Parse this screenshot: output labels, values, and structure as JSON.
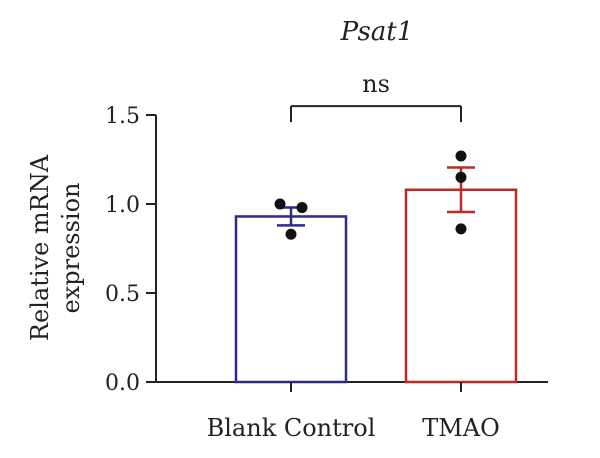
{
  "chart_data": {
    "type": "bar",
    "title": "Psat1",
    "ylabel_lines": [
      "Relative mRNA",
      "expression"
    ],
    "xlabel": "",
    "categories": [
      "Blank Control",
      "TMAO"
    ],
    "values": [
      0.93,
      1.08
    ],
    "errors": [
      0.05,
      0.125
    ],
    "points": [
      [
        1.0,
        0.98,
        0.83
      ],
      [
        1.27,
        1.15,
        0.86
      ]
    ],
    "bar_colors": [
      "#2e2a8a",
      "#c0291f"
    ],
    "ylim": [
      0,
      1.5
    ],
    "yticks": [
      "0.0",
      "0.5",
      "1.0",
      "1.5"
    ],
    "significance": {
      "label": "ns",
      "between": [
        0,
        1
      ],
      "y": 1.55
    },
    "grid": false,
    "legend": "none"
  }
}
